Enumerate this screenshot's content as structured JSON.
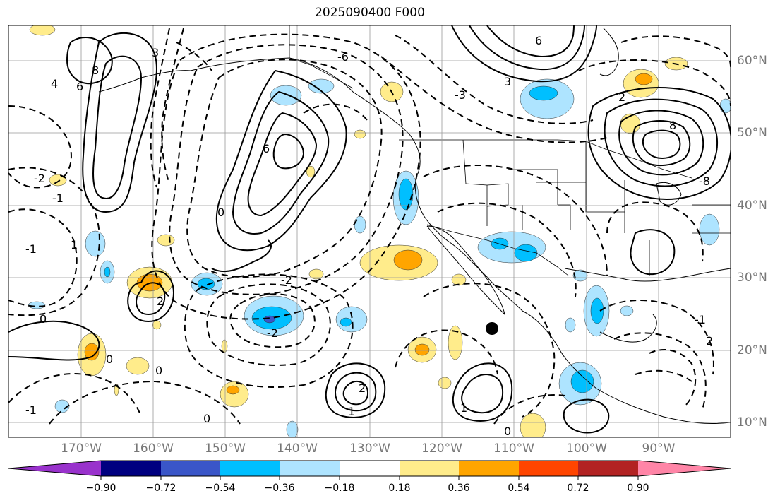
{
  "title": "2025090400 F000",
  "lat_labels": [
    "60°N",
    "50°N",
    "40°N",
    "30°N",
    "20°N",
    "10°N"
  ],
  "lon_labels": [
    "170°W",
    "160°W",
    "150°W",
    "140°W",
    "130°W",
    "120°W",
    "110°W",
    "100°W",
    "90°W"
  ],
  "colorbar": {
    "ticks": [
      "−0.90",
      "−0.72",
      "−0.54",
      "−0.36",
      "−0.18",
      "0.18",
      "0.36",
      "0.54",
      "0.72",
      "0.90"
    ],
    "colors": [
      "#9932cc",
      "#000080",
      "#3a56c8",
      "#00bfff",
      "#aee4ff",
      "#ffffff",
      "#ffec8b",
      "#ffa500",
      "#ff4500",
      "#b22222",
      "#ff85a7"
    ]
  },
  "contour_labels": [
    {
      "text": "0"
    },
    {
      "text": "0"
    },
    {
      "text": "0"
    },
    {
      "text": "0"
    },
    {
      "text": "0"
    },
    {
      "text": "0"
    },
    {
      "text": "2"
    },
    {
      "text": "2"
    },
    {
      "text": "2"
    },
    {
      "text": "3"
    },
    {
      "text": "3"
    },
    {
      "text": "4"
    },
    {
      "text": "6"
    },
    {
      "text": "6"
    },
    {
      "text": "6"
    },
    {
      "text": "8"
    },
    {
      "text": "8"
    },
    {
      "text": "-1"
    },
    {
      "text": "-1"
    },
    {
      "text": "-1"
    },
    {
      "text": "-2"
    },
    {
      "text": "-2"
    },
    {
      "text": "-2"
    },
    {
      "text": "-3"
    },
    {
      "text": "-6"
    },
    {
      "text": "-8"
    },
    {
      "text": "-1"
    },
    {
      "text": "1"
    },
    {
      "text": "1"
    },
    {
      "text": "1"
    },
    {
      "text": "2"
    }
  ],
  "marker": {
    "name": "storm-center-marker",
    "lon": -113,
    "lat": 23
  }
}
